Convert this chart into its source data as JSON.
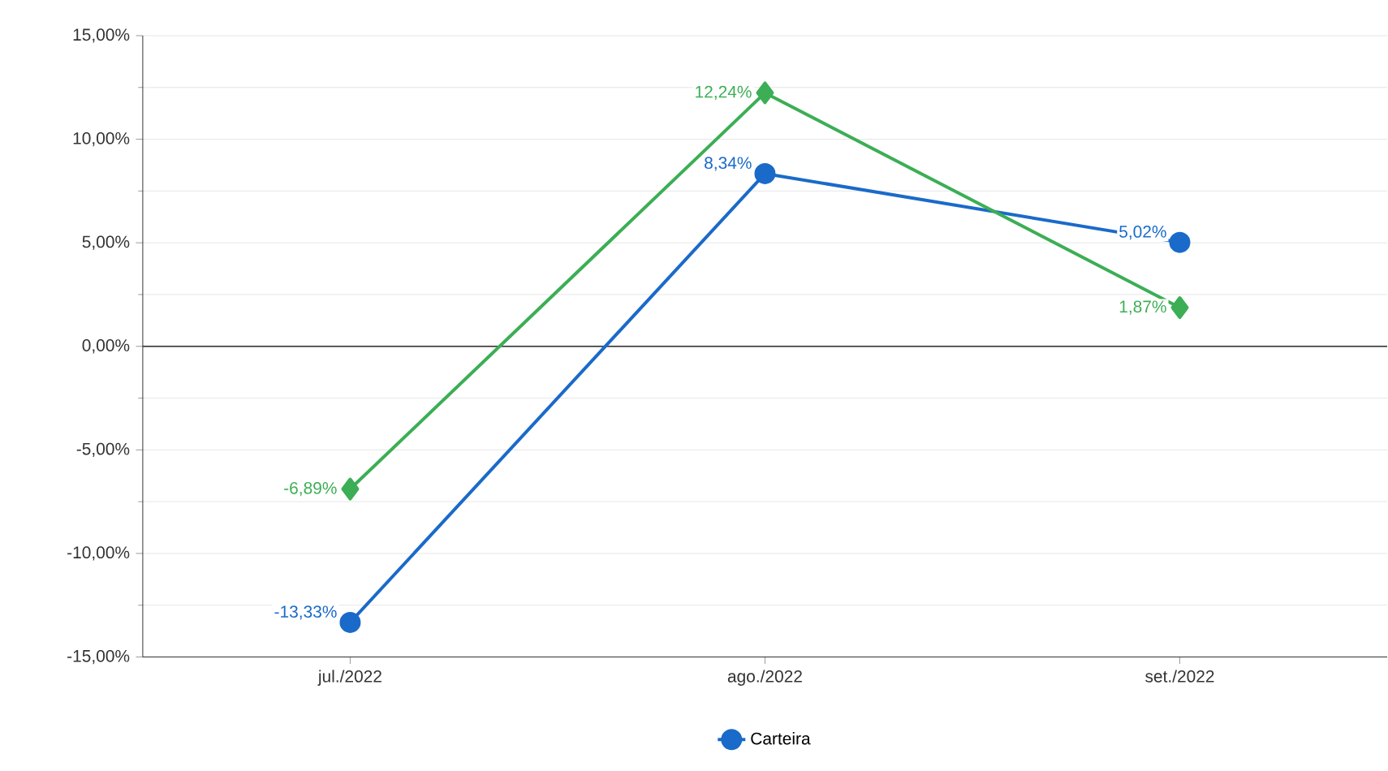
{
  "chart_data": {
    "type": "line",
    "categories": [
      "jul./2022",
      "ago./2022",
      "set./2022"
    ],
    "series": [
      {
        "name": "Carteira",
        "color": "#1a6ac9",
        "marker": "circle",
        "values": [
          -13.33,
          8.34,
          5.02
        ],
        "value_labels": [
          "-13,33%",
          "8,34%",
          "5,02%"
        ]
      },
      {
        "color": "#3cae55",
        "marker": "diamond",
        "values": [
          -6.89,
          12.24,
          1.87
        ],
        "value_labels": [
          "-6,89%",
          "12,24%",
          "1,87%"
        ]
      }
    ],
    "ylim": [
      -15,
      15
    ],
    "yticks": [
      {
        "value": -15,
        "label": "-15,00%"
      },
      {
        "value": -10,
        "label": "-10,00%"
      },
      {
        "value": -5,
        "label": "-5,00%"
      },
      {
        "value": 0,
        "label": "0,00%"
      },
      {
        "value": 5,
        "label": "5,00%"
      },
      {
        "value": 10,
        "label": "10,00%"
      },
      {
        "value": 15,
        "label": "15,00%"
      }
    ],
    "grid": "y",
    "ref_lines": [
      {
        "axis": "y",
        "value": 0,
        "color": "#333333"
      }
    ],
    "legend": "bottom"
  }
}
